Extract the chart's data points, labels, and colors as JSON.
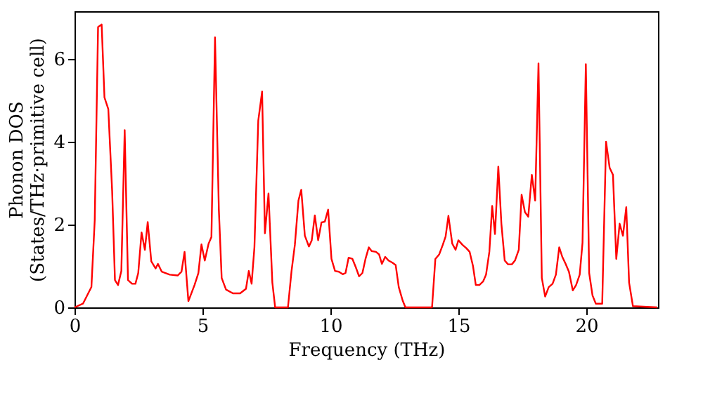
{
  "chart_data": {
    "type": "line",
    "xlabel": "Frequency (THz)",
    "ylabel": "Phonon DOS\n(States/THz·primitive cell)",
    "xlim": [
      0,
      22.8
    ],
    "ylim": [
      0,
      7.15
    ],
    "xticks": [
      0,
      5,
      10,
      15,
      20
    ],
    "yticks": [
      0,
      2,
      4,
      6
    ],
    "grid": false,
    "line_style": "solid",
    "series": [
      {
        "color": "#ff0000",
        "x": [
          0,
          0.33,
          0.66,
          0.79,
          0.92,
          1.06,
          1.17,
          1.32,
          1.47,
          1.58,
          1.7,
          1.83,
          1.96,
          2.09,
          2.25,
          2.38,
          2.49,
          2.62,
          2.75,
          2.86,
          3.0,
          3.17,
          3.26,
          3.41,
          3.72,
          4.03,
          4.18,
          4.3,
          4.45,
          4.69,
          4.84,
          4.96,
          5.09,
          5.24,
          5.35,
          5.49,
          5.64,
          5.75,
          5.92,
          6.19,
          6.47,
          6.7,
          6.81,
          6.92,
          7.03,
          7.18,
          7.33,
          7.44,
          7.58,
          7.73,
          7.84,
          8.34,
          8.48,
          8.61,
          8.75,
          8.86,
          9.0,
          9.16,
          9.27,
          9.39,
          9.52,
          9.65,
          9.78,
          9.91,
          10.04,
          10.18,
          10.33,
          10.48,
          10.59,
          10.71,
          10.86,
          10.99,
          11.12,
          11.25,
          11.37,
          11.5,
          11.61,
          11.78,
          11.9,
          12.01,
          12.14,
          12.27,
          12.42,
          12.55,
          12.67,
          12.82,
          12.93,
          13.97,
          14.1,
          14.25,
          14.39,
          14.5,
          14.61,
          14.76,
          14.89,
          15.0,
          15.16,
          15.31,
          15.44,
          15.57,
          15.68,
          15.82,
          15.97,
          16.08,
          16.21,
          16.32,
          16.43,
          16.56,
          16.68,
          16.81,
          16.94,
          17.09,
          17.21,
          17.36,
          17.47,
          17.6,
          17.73,
          17.87,
          18.0,
          18.13,
          18.26,
          18.39,
          18.53,
          18.68,
          18.81,
          18.94,
          19.06,
          19.19,
          19.32,
          19.47,
          19.6,
          19.74,
          19.85,
          19.98,
          20.11,
          20.24,
          20.37,
          20.62,
          20.77,
          20.91,
          21.04,
          21.17,
          21.3,
          21.43,
          21.56,
          21.67,
          21.82,
          22.77
        ],
        "values": [
          0,
          0.09,
          0.49,
          2.1,
          6.77,
          6.83,
          5.07,
          4.79,
          2.81,
          0.66,
          0.54,
          0.88,
          4.28,
          0.66,
          0.57,
          0.57,
          0.83,
          1.81,
          1.39,
          2.06,
          1.11,
          0.94,
          1.05,
          0.86,
          0.79,
          0.77,
          0.86,
          1.34,
          0.15,
          0.54,
          0.83,
          1.52,
          1.13,
          1.54,
          1.7,
          6.52,
          2.36,
          0.71,
          0.43,
          0.34,
          0.34,
          0.45,
          0.88,
          0.57,
          1.45,
          4.51,
          5.21,
          1.79,
          2.75,
          0.6,
          0,
          0,
          0.88,
          1.51,
          2.58,
          2.84,
          1.73,
          1.47,
          1.62,
          2.22,
          1.62,
          2.05,
          2.07,
          2.36,
          1.17,
          0.88,
          0.86,
          0.8,
          0.83,
          1.2,
          1.17,
          0.97,
          0.75,
          0.83,
          1.17,
          1.45,
          1.36,
          1.34,
          1.28,
          1.05,
          1.22,
          1.13,
          1.08,
          1.02,
          0.49,
          0.17,
          0,
          0,
          1.17,
          1.28,
          1.51,
          1.71,
          2.21,
          1.54,
          1.39,
          1.62,
          1.51,
          1.43,
          1.34,
          1.0,
          0.54,
          0.54,
          0.63,
          0.79,
          1.34,
          2.45,
          1.77,
          3.4,
          2.02,
          1.13,
          1.04,
          1.04,
          1.13,
          1.39,
          2.72,
          2.3,
          2.19,
          3.2,
          2.58,
          5.89,
          0.71,
          0.26,
          0.49,
          0.57,
          0.79,
          1.45,
          1.22,
          1.05,
          0.86,
          0.41,
          0.54,
          0.79,
          1.56,
          5.87,
          0.83,
          0.29,
          0.09,
          0.09,
          4.0,
          3.37,
          3.2,
          1.17,
          2.02,
          1.73,
          2.42,
          0.6,
          0.03,
          0
        ]
      }
    ]
  }
}
